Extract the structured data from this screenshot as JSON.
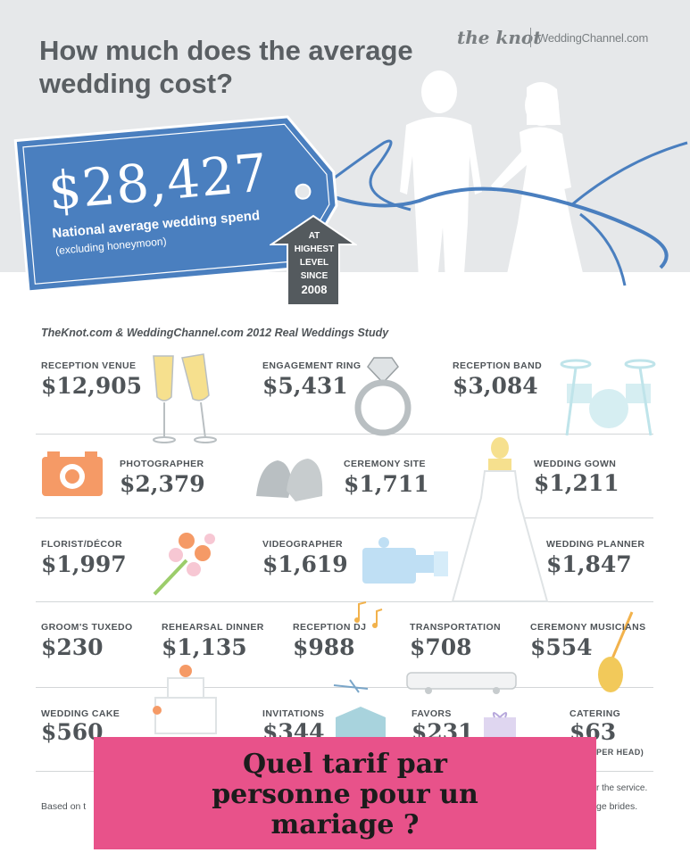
{
  "header": {
    "headline": "How much does the average wedding cost?",
    "brand_left": "the knot",
    "brand_right": "WeddingChannel.com"
  },
  "tag": {
    "amount": "$28,427",
    "label": "National average wedding spend",
    "sublabel": "(excluding honeymoon)"
  },
  "badge": {
    "line1": "AT",
    "line2": "HIGHEST",
    "line3": "LEVEL",
    "line4": "SINCE",
    "line5": "2008"
  },
  "study": "TheKnot.com & WeddingChannel.com 2012 Real Weddings Study",
  "items": [
    {
      "label": "RECEPTION VENUE",
      "value": "$12,905"
    },
    {
      "label": "ENGAGEMENT RING",
      "value": "$5,431"
    },
    {
      "label": "RECEPTION BAND",
      "value": "$3,084"
    },
    {
      "label": "PHOTOGRAPHER",
      "value": "$2,379"
    },
    {
      "label": "CEREMONY SITE",
      "value": "$1,711"
    },
    {
      "label": "WEDDING GOWN",
      "value": "$1,211"
    },
    {
      "label": "FLORIST/DÉCOR",
      "value": "$1,997"
    },
    {
      "label": "VIDEOGRAPHER",
      "value": "$1,619"
    },
    {
      "label": "WEDDING PLANNER",
      "value": "$1,847"
    },
    {
      "label": "GROOM'S TUXEDO",
      "value": "$230"
    },
    {
      "label": "REHEARSAL DINNER",
      "value": "$1,135"
    },
    {
      "label": "RECEPTION DJ",
      "value": "$988"
    },
    {
      "label": "TRANSPORTATION",
      "value": "$708"
    },
    {
      "label": "CEREMONY MUSICIANS",
      "value": "$554"
    },
    {
      "label": "WEDDING CAKE",
      "value": "$560"
    },
    {
      "label": "INVITATIONS",
      "value": "$344"
    },
    {
      "label": "FAVORS",
      "value": "$231"
    },
    {
      "label": "CATERING",
      "value": "$63"
    }
  ],
  "catering_note": "PER HEAD)",
  "footnote_left": "Based on t",
  "footnote_right1": "r the service.",
  "footnote_right2": "ge brides.",
  "banner": {
    "line1": "Quel tarif par",
    "line2": "personne pour un",
    "line3": "mariage ?"
  },
  "colors": {
    "header_bg": "#e6e8ea",
    "tag_blue": "#4a7fbf",
    "badge_dark": "#545a5e",
    "text": "#4f5458",
    "banner_pink": "#e8528a"
  }
}
